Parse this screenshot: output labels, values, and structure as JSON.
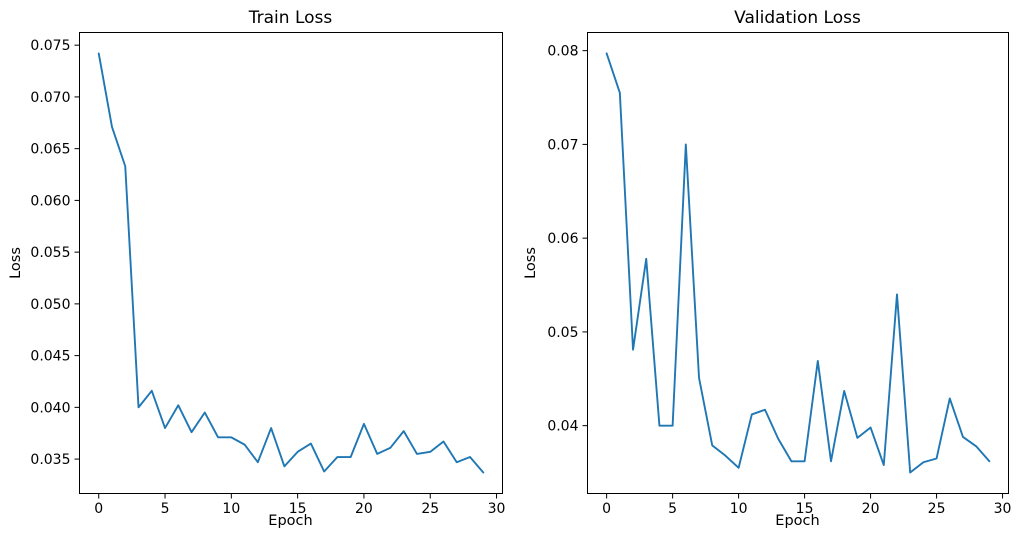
{
  "figure": {
    "background": "#ffffff",
    "line_color": "#1f77b4",
    "axis_color": "#000000",
    "tick_label_color": "#000000"
  },
  "chart_data": [
    {
      "type": "line",
      "title": "Train Loss",
      "xlabel": "Epoch",
      "ylabel": "Loss",
      "x": [
        0,
        1,
        2,
        3,
        4,
        5,
        6,
        7,
        8,
        9,
        10,
        11,
        12,
        13,
        14,
        15,
        16,
        17,
        18,
        19,
        20,
        21,
        22,
        23,
        24,
        25,
        26,
        27,
        28,
        29
      ],
      "y": [
        0.0742,
        0.0671,
        0.0633,
        0.04,
        0.0416,
        0.038,
        0.0402,
        0.0376,
        0.0395,
        0.0371,
        0.0371,
        0.0364,
        0.0347,
        0.038,
        0.0343,
        0.0357,
        0.0365,
        0.0338,
        0.0352,
        0.0352,
        0.0384,
        0.0355,
        0.0361,
        0.0377,
        0.0355,
        0.0357,
        0.0367,
        0.0347,
        0.0352,
        0.0337
      ],
      "xticks": [
        0,
        5,
        10,
        15,
        20,
        25,
        30
      ],
      "xtick_labels": [
        "0",
        "5",
        "10",
        "15",
        "20",
        "25",
        "30"
      ],
      "yticks": [
        0.035,
        0.04,
        0.045,
        0.05,
        0.055,
        0.06,
        0.065,
        0.07,
        0.075
      ],
      "ytick_labels": [
        "0.035",
        "0.040",
        "0.045",
        "0.050",
        "0.055",
        "0.060",
        "0.065",
        "0.070",
        "0.075"
      ],
      "xlim": [
        -1.45,
        30.45
      ],
      "ylim": [
        0.031675,
        0.076225
      ],
      "grid": false,
      "legend": null
    },
    {
      "type": "line",
      "title": "Validation Loss",
      "xlabel": "Epoch",
      "ylabel": "Loss",
      "x": [
        0,
        1,
        2,
        3,
        4,
        5,
        6,
        7,
        8,
        9,
        10,
        11,
        12,
        13,
        14,
        15,
        16,
        17,
        18,
        19,
        20,
        21,
        22,
        23,
        24,
        25,
        26,
        27,
        28,
        29
      ],
      "y": [
        0.0797,
        0.0755,
        0.0481,
        0.0578,
        0.04,
        0.04,
        0.07,
        0.0451,
        0.0379,
        0.0368,
        0.0355,
        0.0412,
        0.0417,
        0.0386,
        0.0362,
        0.0362,
        0.0469,
        0.0362,
        0.0437,
        0.0387,
        0.0398,
        0.0358,
        0.054,
        0.035,
        0.0361,
        0.0365,
        0.0429,
        0.0388,
        0.0378,
        0.0362
      ],
      "xticks": [
        0,
        5,
        10,
        15,
        20,
        25,
        30
      ],
      "xtick_labels": [
        "0",
        "5",
        "10",
        "15",
        "20",
        "25",
        "30"
      ],
      "yticks": [
        0.04,
        0.05,
        0.06,
        0.07,
        0.08
      ],
      "ytick_labels": [
        "0.04",
        "0.05",
        "0.06",
        "0.07",
        "0.08"
      ],
      "xlim": [
        -1.45,
        30.45
      ],
      "ylim": [
        0.032765,
        0.081935
      ],
      "grid": false,
      "legend": null
    }
  ]
}
